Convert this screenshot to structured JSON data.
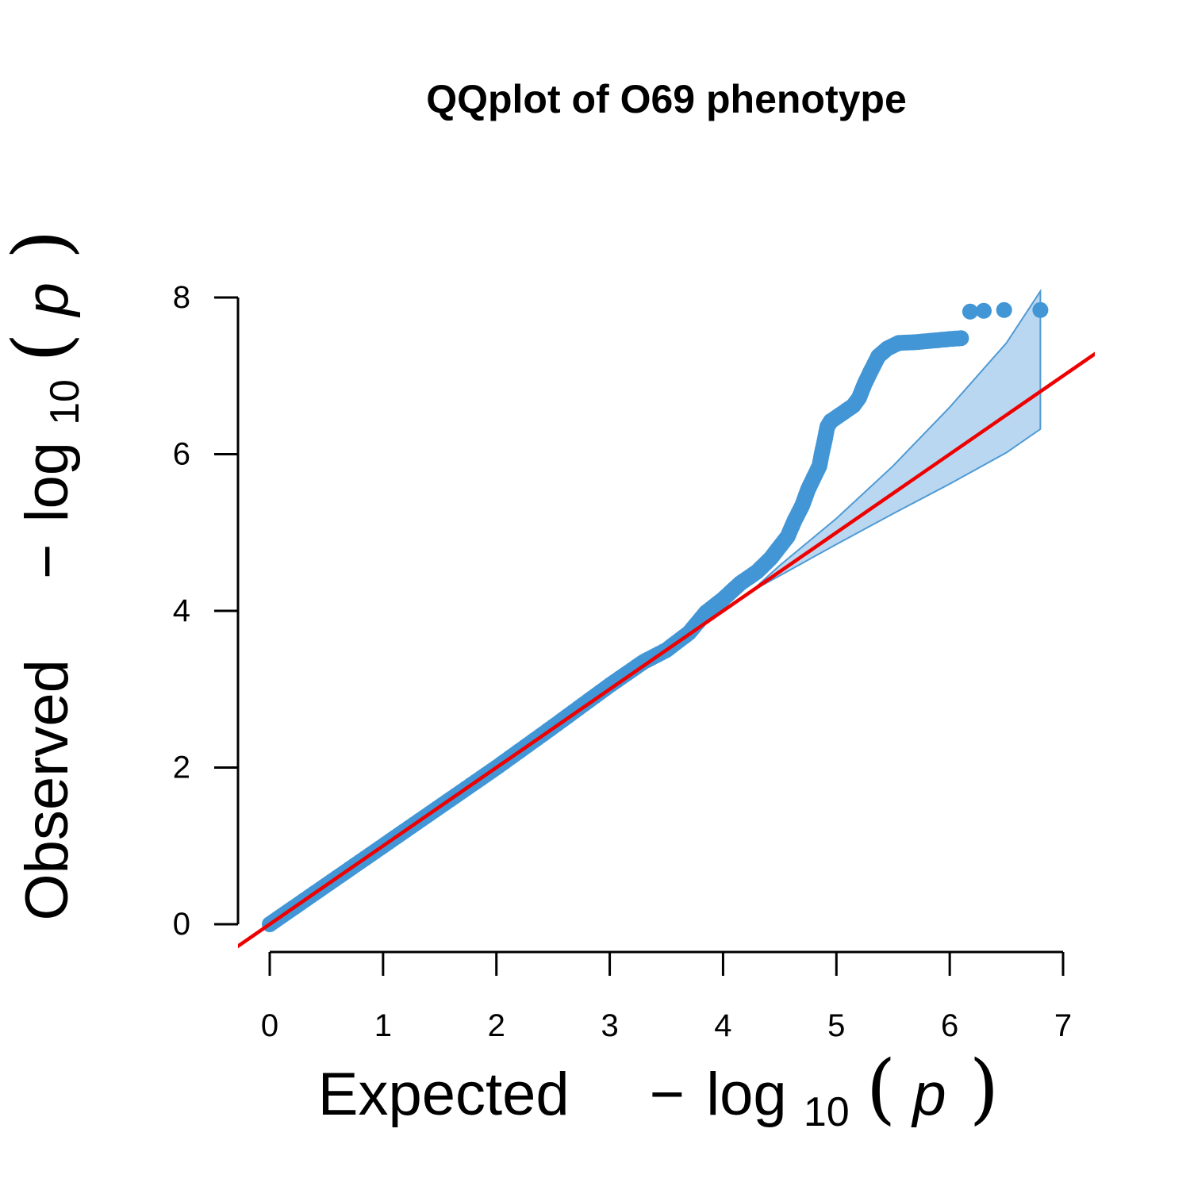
{
  "chart_data": {
    "type": "scatter",
    "title": "QQplot of O69 phenotype",
    "xlabel": {
      "main": "Expected",
      "minus": "−",
      "log": "log",
      "base": "10",
      "open": "(",
      "var": "p",
      "close": ")"
    },
    "ylabel": {
      "main": "Observed",
      "minus": "−",
      "log": "log",
      "base": "10",
      "open": "(",
      "var": "p",
      "close": ")"
    },
    "xlim": [
      0,
      7
    ],
    "ylim": [
      0,
      8
    ],
    "x_ticks": [
      "0",
      "1",
      "2",
      "3",
      "4",
      "5",
      "6",
      "7"
    ],
    "y_ticks": [
      "0",
      "2",
      "4",
      "6",
      "8"
    ],
    "grid": false,
    "reference_line": {
      "slope": 1,
      "intercept": 0,
      "color": "#ee0000"
    },
    "confidence_band": {
      "x": [
        4.25,
        4.5,
        5.0,
        5.5,
        6.0,
        6.5,
        6.8
      ],
      "upper": [
        4.25,
        4.58,
        5.18,
        5.85,
        6.6,
        7.42,
        8.08
      ],
      "lower": [
        4.25,
        4.45,
        4.85,
        5.24,
        5.62,
        6.02,
        6.32
      ],
      "fill": "#b9d7f0",
      "stroke": "#4f9ad4"
    },
    "series": [
      {
        "color": "#4296d6",
        "x": [
          0.0,
          0.5,
          1.0,
          1.5,
          2.0,
          2.5,
          3.0,
          3.3,
          3.5,
          3.7,
          3.85,
          4.0,
          4.15,
          4.3,
          4.42,
          4.5,
          4.57,
          4.63,
          4.7,
          4.75,
          4.8,
          4.85,
          4.87,
          4.9,
          4.92,
          4.95,
          5.05,
          5.15,
          5.2,
          5.25,
          5.3,
          5.37,
          5.45,
          5.55,
          5.7,
          5.85,
          6.0,
          6.1,
          6.18,
          6.3,
          6.48,
          6.8
        ],
        "y": [
          0.0,
          0.5,
          1.0,
          1.5,
          2.0,
          2.52,
          3.05,
          3.35,
          3.5,
          3.72,
          3.98,
          4.15,
          4.35,
          4.5,
          4.67,
          4.82,
          4.95,
          5.15,
          5.35,
          5.55,
          5.7,
          5.85,
          6.0,
          6.2,
          6.35,
          6.42,
          6.52,
          6.62,
          6.72,
          6.9,
          7.05,
          7.25,
          7.35,
          7.42,
          7.43,
          7.45,
          7.47,
          7.48,
          7.82,
          7.83,
          7.84,
          7.84
        ]
      }
    ]
  }
}
